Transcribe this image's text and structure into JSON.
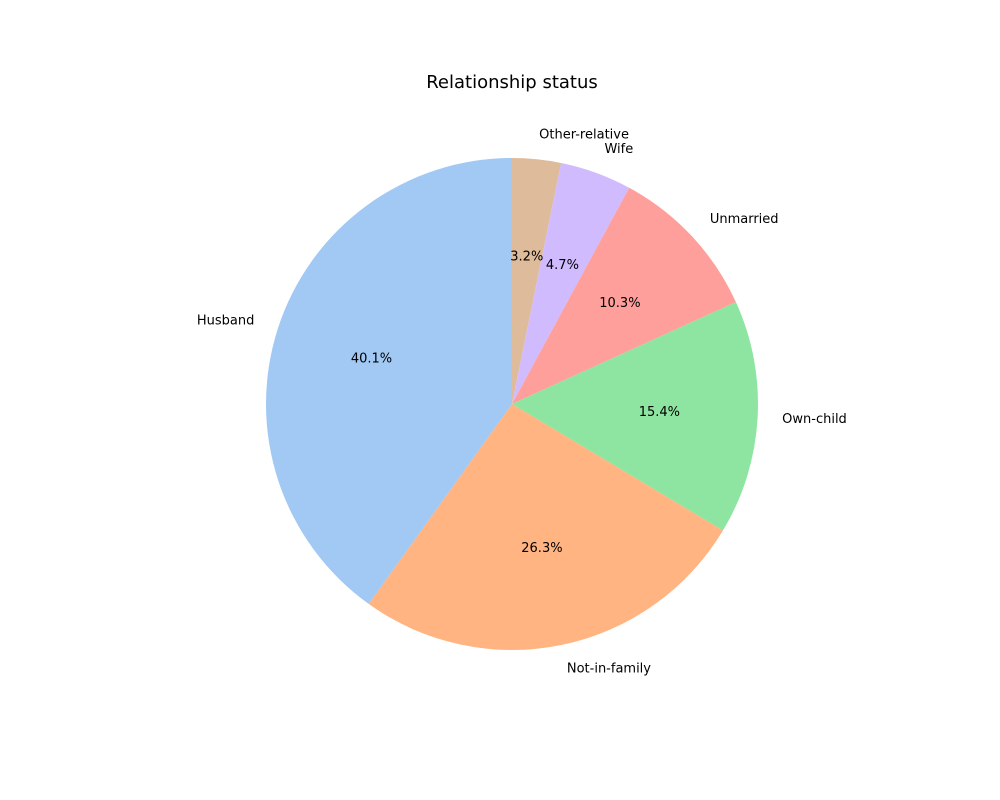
{
  "chart_data": {
    "type": "pie",
    "title": "Relationship status",
    "start_angle_deg": 90,
    "direction": "clockwise",
    "legend": "none",
    "slices": [
      {
        "label": "Other-relative",
        "value": 3.2,
        "pct_label": "3.2%",
        "color": "#debb9b"
      },
      {
        "label": "Wife",
        "value": 4.7,
        "pct_label": "4.7%",
        "color": "#d0bbff"
      },
      {
        "label": "Unmarried",
        "value": 10.3,
        "pct_label": "10.3%",
        "color": "#ff9f9b"
      },
      {
        "label": "Own-child",
        "value": 15.4,
        "pct_label": "15.4%",
        "color": "#8de5a1"
      },
      {
        "label": "Not-in-family",
        "value": 26.3,
        "pct_label": "26.3%",
        "color": "#ffb482"
      },
      {
        "label": "Husband",
        "value": 40.1,
        "pct_label": "40.1%",
        "color": "#a1c9f4"
      }
    ]
  }
}
